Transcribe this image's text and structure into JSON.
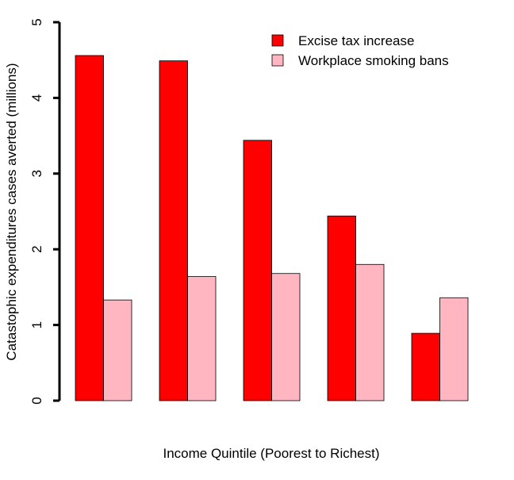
{
  "chart_data": {
    "type": "bar",
    "y_label": "Catastophic expenditures cases averted (millions)",
    "x_label": "Income Quintile (Poorest to Richest)",
    "categories": [
      null,
      null,
      null,
      null,
      null
    ],
    "series": [
      {
        "name": "Excise tax increase",
        "color": "#ff0000",
        "values": [
          4.56,
          4.49,
          3.44,
          2.44,
          0.89
        ]
      },
      {
        "name": "Workplace smoking bans",
        "color": "#ffb6c1",
        "values": [
          1.33,
          1.64,
          1.68,
          1.8,
          1.36
        ]
      }
    ],
    "ylim": [
      0,
      5
    ],
    "yticks": [
      0,
      1,
      2,
      3,
      4,
      5
    ],
    "legend": "top-right"
  }
}
